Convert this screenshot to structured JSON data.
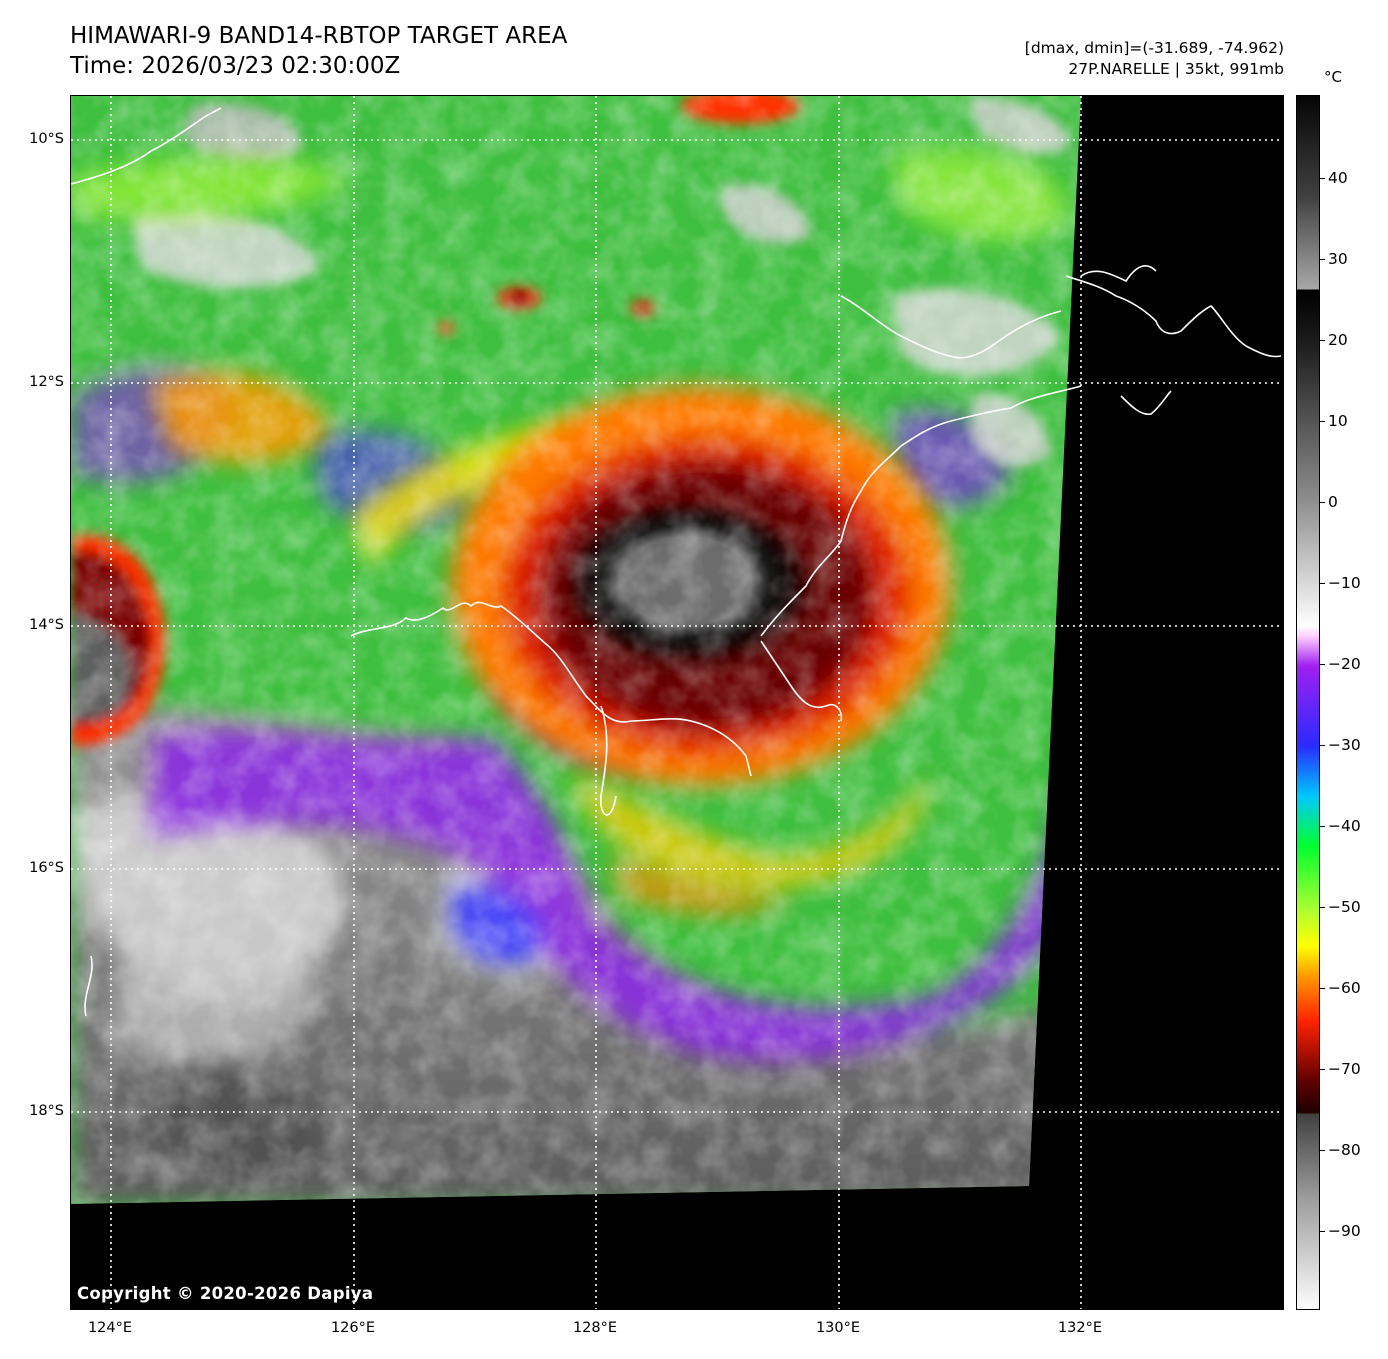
{
  "header": {
    "title_line1": "HIMAWARI-9 BAND14-RBTOP TARGET AREA",
    "title_line2": "Time: 2026/03/23 02:30:00Z",
    "info_line1": "[dmax, dmin]=(-31.689, -74.962)",
    "info_line2": "27P.NARELLE | 35kt, 991mb"
  },
  "map": {
    "lat_labels": [
      "10°S",
      "12°S",
      "14°S",
      "16°S",
      "18°S"
    ],
    "lon_labels": [
      "124°E",
      "126°E",
      "128°E",
      "130°E",
      "132°E"
    ],
    "copyright": "Copyright © 2020-2026 Dapiya"
  },
  "colorbar": {
    "unit": "°C",
    "tick_labels": [
      "40",
      "30",
      "20",
      "10",
      "0",
      "−10",
      "−20",
      "−30",
      "−40",
      "−50",
      "−60",
      "−70",
      "−80",
      "−90"
    ]
  }
}
